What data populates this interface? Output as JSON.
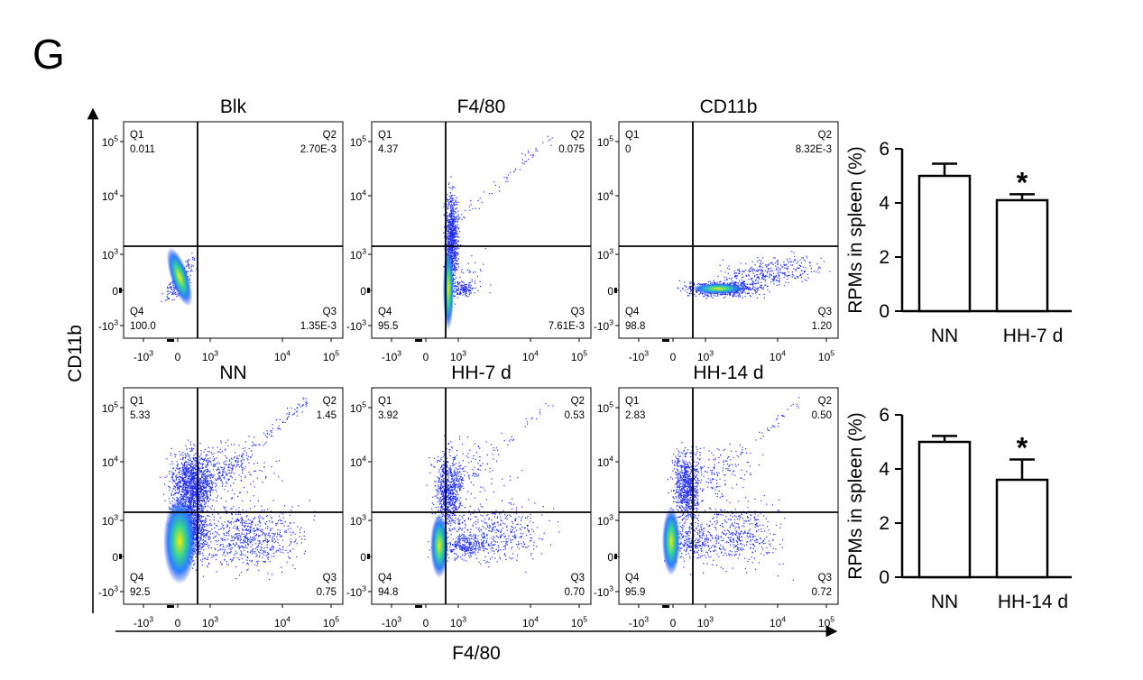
{
  "panel_label": "G",
  "shared_axes": {
    "y_label": "CD11b",
    "x_label": "F4/80"
  },
  "flow_plots": [
    {
      "title": "Blk",
      "quadrants": {
        "Q1": "0.011",
        "Q2": "2.70E-3",
        "Q3": "1.35E-3",
        "Q4": "100.0"
      }
    },
    {
      "title": "F4/80",
      "quadrants": {
        "Q1": "4.37",
        "Q2": "0.075",
        "Q3": "7.61E-3",
        "Q4": "95.5"
      }
    },
    {
      "title": "CD11b",
      "quadrants": {
        "Q1": "0",
        "Q2": "8.32E-3",
        "Q3": "1.20",
        "Q4": "98.8"
      }
    },
    {
      "title": "NN",
      "quadrants": {
        "Q1": "5.33",
        "Q2": "1.45",
        "Q3": "0.75",
        "Q4": "92.5"
      }
    },
    {
      "title": "HH-7 d",
      "quadrants": {
        "Q1": "3.92",
        "Q2": "0.53",
        "Q3": "0.70",
        "Q4": "94.8"
      }
    },
    {
      "title": "HH-14 d",
      "quadrants": {
        "Q1": "2.83",
        "Q2": "0.50",
        "Q3": "0.72",
        "Q4": "95.9"
      }
    }
  ],
  "flow_ticks": {
    "y": [
      [
        "10",
        "5"
      ],
      [
        "10",
        "4"
      ],
      [
        "10",
        "3"
      ],
      [
        "0",
        ""
      ],
      [
        "-10",
        "3"
      ]
    ],
    "x": [
      [
        "-10",
        "3"
      ],
      [
        "0",
        ""
      ],
      [
        "10",
        "3"
      ],
      [
        "10",
        "4"
      ],
      [
        "10",
        "5"
      ]
    ]
  },
  "chart_data": [
    {
      "type": "bar",
      "categories": [
        "NN",
        "HH-7 d"
      ],
      "values": [
        5.0,
        4.1
      ],
      "error": [
        0.45,
        0.22
      ],
      "significance": [
        "",
        "*"
      ],
      "ylabel": "RPMs in spleen (%)",
      "ylim": [
        0,
        6
      ],
      "yticks": [
        0,
        2,
        4,
        6
      ]
    },
    {
      "type": "bar",
      "categories": [
        "NN",
        "HH-14 d"
      ],
      "values": [
        5.0,
        3.6
      ],
      "error": [
        0.22,
        0.75
      ],
      "significance": [
        "",
        "*"
      ],
      "ylabel": "RPMs in spleen (%)",
      "ylim": [
        0,
        6
      ],
      "yticks": [
        0,
        2,
        4,
        6
      ]
    }
  ]
}
